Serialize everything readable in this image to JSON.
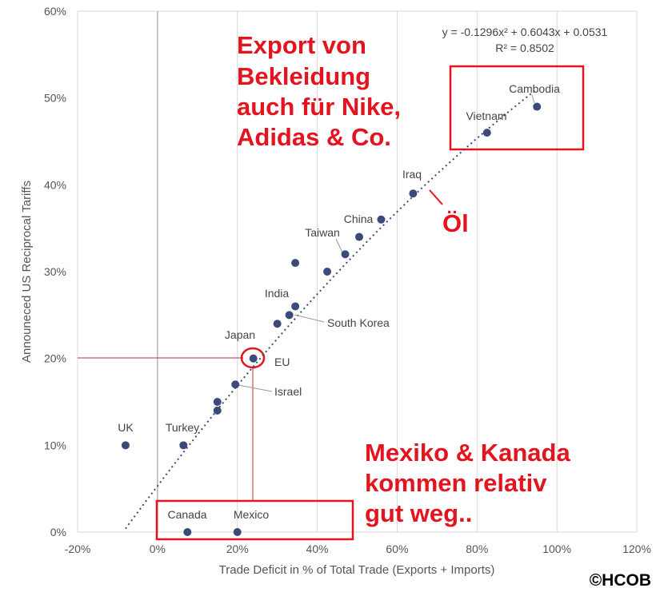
{
  "chart_data": {
    "type": "scatter",
    "xlabel": "Trade Deficit in % of Total Trade (Exports + Imports)",
    "ylabel": "Announeced US Reciprocal Tariffs",
    "xlim": [
      -20,
      120
    ],
    "ylim": [
      0,
      60
    ],
    "x_ticks": [
      "-20%",
      "0%",
      "20%",
      "40%",
      "60%",
      "80%",
      "100%",
      "120%"
    ],
    "y_ticks": [
      "0%",
      "10%",
      "20%",
      "30%",
      "40%",
      "50%",
      "60%"
    ],
    "grid": "vertical",
    "points": [
      {
        "label": "Cambodia",
        "x": 95,
        "y": 49
      },
      {
        "label": "Vietnam",
        "x": 82.5,
        "y": 46
      },
      {
        "label": "Iraq",
        "x": 64,
        "y": 39
      },
      {
        "label": "China",
        "x": 56,
        "y": 36
      },
      {
        "label": "",
        "x": 50.5,
        "y": 34
      },
      {
        "label": "Taiwan",
        "x": 47,
        "y": 32
      },
      {
        "label": "",
        "x": 34.5,
        "y": 31
      },
      {
        "label": "",
        "x": 42.5,
        "y": 30
      },
      {
        "label": "India",
        "x": 34.5,
        "y": 26
      },
      {
        "label": "South Korea",
        "x": 33,
        "y": 25
      },
      {
        "label": "Japan",
        "x": 30,
        "y": 24
      },
      {
        "label": "EU",
        "x": 24,
        "y": 20
      },
      {
        "label": "Israel",
        "x": 19.5,
        "y": 17
      },
      {
        "label": "",
        "x": 15,
        "y": 15
      },
      {
        "label": "",
        "x": 15,
        "y": 14
      },
      {
        "label": "UK",
        "x": -8,
        "y": 10
      },
      {
        "label": "Turkey",
        "x": 6.5,
        "y": 10
      },
      {
        "label": "Canada",
        "x": 7.5,
        "y": 0
      },
      {
        "label": "Mexico",
        "x": 20,
        "y": 0
      }
    ],
    "trendline": {
      "a": -0.1296,
      "b": 0.6043,
      "c": 0.0531,
      "x_from": -8,
      "x_to": 95,
      "equation": "y = -0.1296x² + 0.6043x + 0.0531",
      "r_squared": "R² = 0.8502"
    },
    "annotations": [
      {
        "lines": [
          "Export von",
          "Bekleidung",
          "auch für Nike,",
          "Adidas & Co."
        ]
      },
      {
        "text": "Öl"
      },
      {
        "lines": [
          "Mexiko & Kanada",
          "kommen relativ",
          "gut weg.."
        ]
      }
    ],
    "highlight_point": "EU"
  },
  "credit": "©HCOB",
  "colors": {
    "marker": "#3b4a7a",
    "trendline": "#3b4a7a",
    "annotation": "#e3141e",
    "grid": "#d9d9d9",
    "zero_axis": "#b3b3b3"
  }
}
